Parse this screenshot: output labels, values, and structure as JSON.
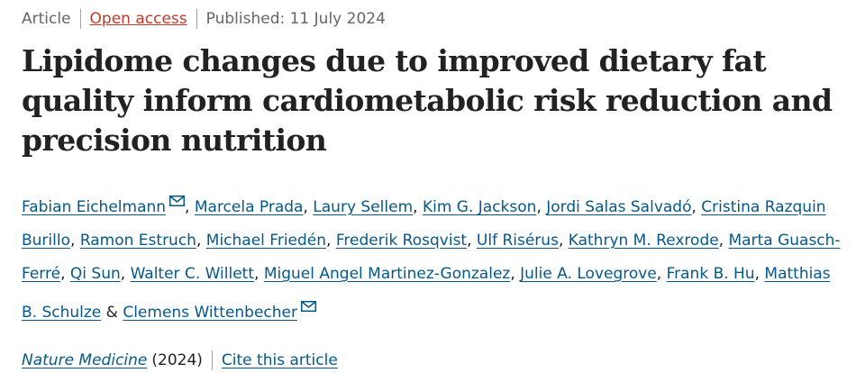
{
  "article_meta": {
    "type": "Article",
    "access": "Open access",
    "published": "Published: 11 July 2024"
  },
  "title": "Lipidome changes due to improved dietary fat quality inform cardiometabolic risk reduction and precision nutrition",
  "authors": {
    "list": [
      "Fabian Eichelmann",
      "Marcela Prada",
      "Laury Sellem",
      "Kim G. Jackson",
      "Jordi Salas Salvadó",
      "Cristina Razquin Burillo",
      "Ramon Estruch",
      "Michael Friedén",
      "Frederik Rosqvist",
      "Ulf Risérus",
      "Kathryn M. Rexrode",
      "Marta Guasch-Ferré",
      "Qi Sun",
      "Walter C. Willett",
      "Miguel Angel Martinez-Gonzalez",
      "Julie A. Lovegrove",
      "Frank B. Hu",
      "Matthias B. Schulze",
      "Clemens Wittenbecher"
    ],
    "separator": ", ",
    "last_separator": " & ",
    "corresponding_indices": [
      0,
      18
    ],
    "mail_icon": "mail-icon"
  },
  "journal": {
    "name": "Nature Medicine",
    "year": "(2024)",
    "cite_label": "Cite this article"
  },
  "colors": {
    "link": "#06588a",
    "open_access": "#c0392b",
    "text": "#222222",
    "muted": "#666666"
  }
}
